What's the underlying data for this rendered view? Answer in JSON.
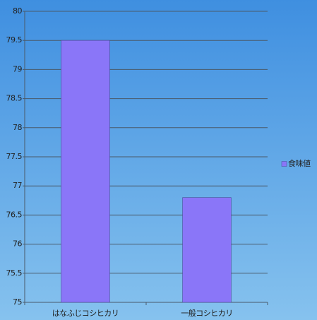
{
  "chart_data": {
    "type": "bar",
    "categories": [
      "はなふじコシヒカリ",
      "一般コシヒカリ"
    ],
    "series": [
      {
        "name": "食味値",
        "color": "#8a76f8",
        "values": [
          79.5,
          76.8
        ]
      }
    ],
    "ylim": [
      75,
      80
    ],
    "yticks": [
      75,
      75.5,
      76,
      76.5,
      77,
      77.5,
      78,
      78.5,
      79,
      79.5,
      80
    ],
    "grid": true,
    "legend": "right"
  }
}
